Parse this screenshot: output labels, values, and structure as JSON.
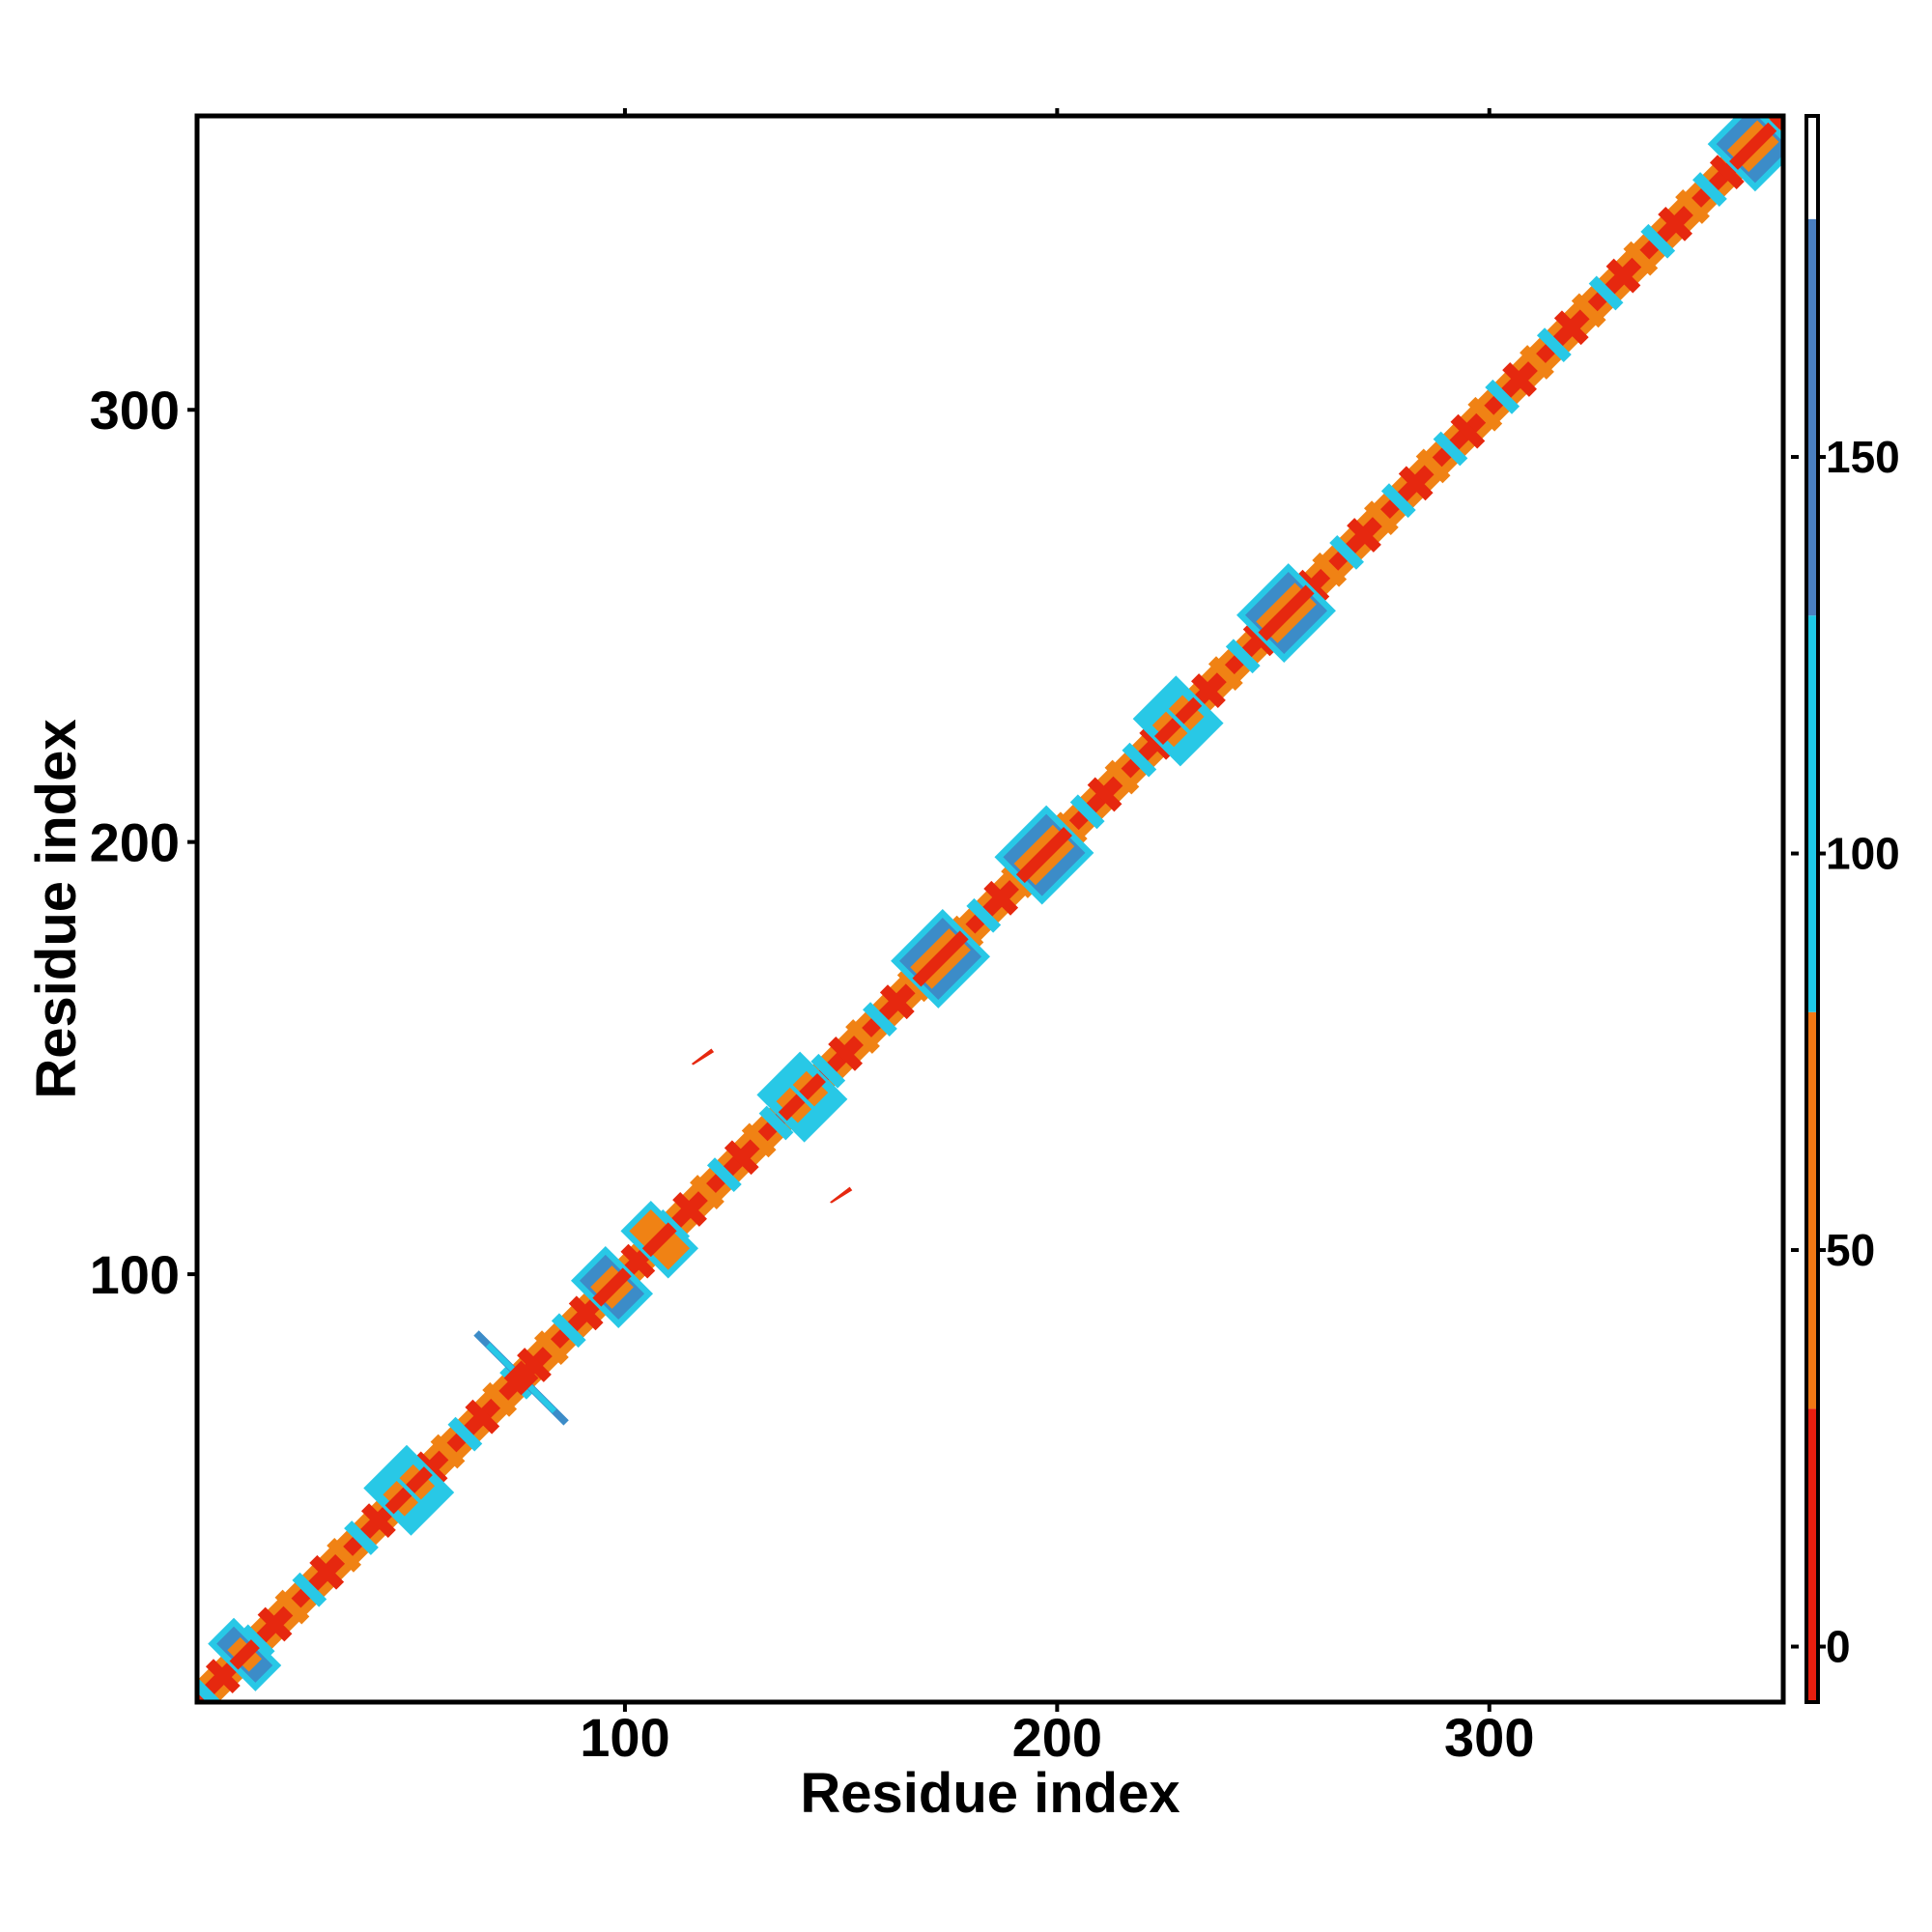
{
  "chart_data": {
    "type": "heatmap",
    "title": "",
    "xlabel": "Residue index",
    "ylabel": "Residue index",
    "xlim": [
      1,
      368
    ],
    "ylim": [
      1,
      368
    ],
    "xticks": [
      100,
      200,
      300
    ],
    "yticks": [
      100,
      200,
      300
    ],
    "grid": false,
    "legend": "colorbar-right",
    "colorbar": {
      "ticks": [
        0,
        50,
        100,
        150
      ],
      "range": [
        -7,
        193
      ],
      "bands": [
        {
          "from": -7,
          "to": 30,
          "color": "#e61e0f"
        },
        {
          "from": 30,
          "to": 80,
          "color": "#f07814"
        },
        {
          "from": 80,
          "to": 130,
          "color": "#1ec8e6"
        },
        {
          "from": 130,
          "to": 180,
          "color": "#4a7fc0"
        },
        {
          "from": 180,
          "to": 193,
          "color": "#ffffff"
        }
      ]
    },
    "colors": {
      "diagonal": "#e6280f",
      "near_diagonal": "#f08214",
      "cyan": "#28c8e6",
      "steel_blue": "#3c8cc8",
      "frame": "#000000"
    },
    "blobs": [
      {
        "center": 12,
        "length": 4,
        "color": "steel_blue"
      },
      {
        "center": 50,
        "length": 8,
        "color": "cyan",
        "spikes": true
      },
      {
        "center": 97,
        "length": 6,
        "color": "steel_blue"
      },
      {
        "center": 108,
        "length": 5,
        "color": "near_diagonal"
      },
      {
        "center": 141,
        "length": 8,
        "color": "cyan",
        "spikes": true
      },
      {
        "center": 173,
        "length": 10,
        "color": "steel_blue"
      },
      {
        "center": 197,
        "length": 10,
        "color": "steel_blue"
      },
      {
        "center": 228,
        "length": 8,
        "color": "cyan",
        "spikes": true
      },
      {
        "center": 253,
        "length": 10,
        "color": "steel_blue"
      },
      {
        "center": 361,
        "length": 8,
        "color": "steel_blue"
      }
    ],
    "antidiagonal_cross": {
      "center": 76,
      "extent": 11,
      "color": "steel_blue"
    },
    "off_diagonal_contacts": [
      {
        "x": 118,
        "y": 151,
        "color": "diagonal"
      },
      {
        "x": 150,
        "y": 119,
        "color": "diagonal"
      }
    ]
  }
}
